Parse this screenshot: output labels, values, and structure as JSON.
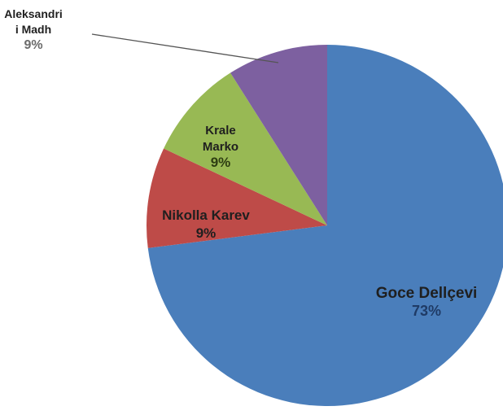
{
  "chart_data": {
    "type": "pie",
    "title": "",
    "start_angle_deg": 0,
    "direction": "clockwise",
    "slices": [
      {
        "label": "Goce Dellçevi",
        "label_lines": [
          "Goce Dellçevi"
        ],
        "value": 73,
        "percent_text": "73%",
        "color": "#4a7ebb",
        "label_color": "#1f1f1f",
        "pct_color": "#1f3b66"
      },
      {
        "label": "Nikolla Karev",
        "label_lines": [
          "Nikolla Karev"
        ],
        "value": 9,
        "percent_text": "9%",
        "color": "#be4b48",
        "label_color": "#1f1f1f",
        "pct_color": "#1f1f1f"
      },
      {
        "label": "Krale Marko",
        "label_lines": [
          "Krale",
          "Marko"
        ],
        "value": 9,
        "percent_text": "9%",
        "color": "#98b954",
        "label_color": "#1f1f1f",
        "pct_color": "#2d3d12"
      },
      {
        "label": "Aleksandri i Madh",
        "label_lines": [
          "Aleksandri",
          "i Madh"
        ],
        "value": 9,
        "percent_text": "9%",
        "color": "#7d60a0",
        "label_color": "#1f1f1f",
        "pct_color": "#6b6b6b"
      }
    ],
    "legend": "none"
  }
}
